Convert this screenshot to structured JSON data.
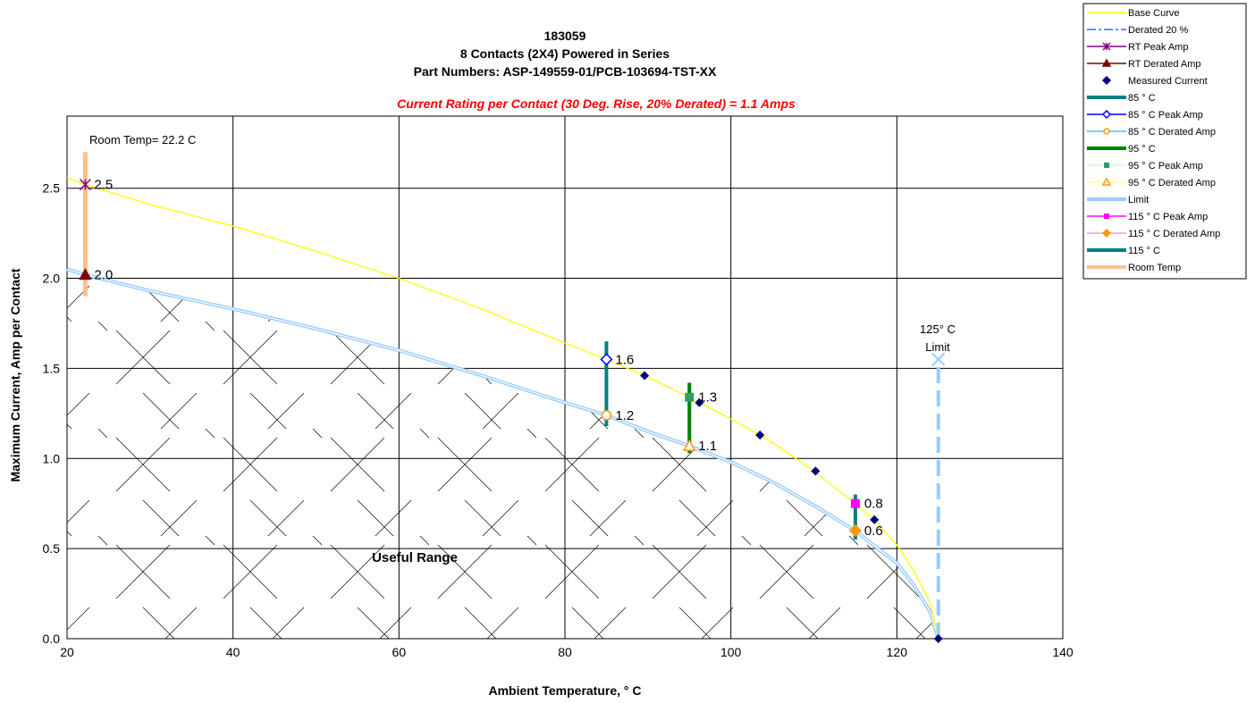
{
  "chart_data": {
    "type": "line",
    "title_lines": [
      "183059",
      "8 Contacts (2X4) Powered in Series",
      "Part Numbers: ASP-149559-01/PCB-103694-TST-XX"
    ],
    "subtitle": "Current Rating per Contact (30 Deg. Rise, 20% Derated)  = 1.1 Amps",
    "xlabel": "Ambient Temperature,  ° C",
    "ylabel": "Maximum Current, Amp per Contact",
    "xlim": [
      20,
      140
    ],
    "ylim": [
      0,
      2.9
    ],
    "x_ticks": [
      "20",
      "40",
      "60",
      "80",
      "100",
      "120",
      "140"
    ],
    "y_ticks": [
      "0.0",
      "0.5",
      "1.0",
      "1.5",
      "2.0",
      "2.5"
    ],
    "x_tick_values": [
      20,
      40,
      60,
      80,
      100,
      120,
      140
    ],
    "y_tick_values": [
      0,
      0.5,
      1.0,
      1.5,
      2.0,
      2.5
    ],
    "grid": true,
    "legend_position": "top-right",
    "annotations": {
      "room_temp": "Room Temp= 22.2 C",
      "limit_line1": "125° C",
      "limit_line2": "Limit",
      "useful_range": "Useful Range"
    },
    "base_curve": {
      "name": "Base Curve",
      "color": "#ffff00",
      "x": [
        20,
        22.2,
        30,
        40,
        50,
        60,
        70,
        80,
        85,
        89.6,
        95,
        96.2,
        100,
        103.5,
        105,
        110,
        115,
        117.3,
        120,
        122,
        124,
        125
      ],
      "y": [
        2.56,
        2.52,
        2.41,
        2.29,
        2.15,
        2.0,
        1.83,
        1.64,
        1.55,
        1.46,
        1.34,
        1.31,
        1.22,
        1.13,
        1.09,
        0.93,
        0.75,
        0.66,
        0.52,
        0.38,
        0.2,
        0.0
      ]
    },
    "derated_curve": {
      "name": "Derated 20 %",
      "color": "#99ccff",
      "x": [
        20,
        22.2,
        30,
        40,
        50,
        60,
        70,
        80,
        85,
        90,
        95,
        100,
        105,
        110,
        115,
        118,
        120,
        122,
        124,
        125
      ],
      "y": [
        2.05,
        2.02,
        1.93,
        1.83,
        1.72,
        1.6,
        1.46,
        1.31,
        1.24,
        1.15,
        1.07,
        0.98,
        0.87,
        0.74,
        0.6,
        0.49,
        0.42,
        0.3,
        0.15,
        0.0
      ]
    },
    "measured_current": {
      "name": "Measured Current",
      "color": "#000080",
      "x": [
        89.6,
        96.2,
        103.5,
        110.2,
        117.3,
        125
      ],
      "y": [
        1.46,
        1.31,
        1.13,
        0.93,
        0.66,
        0.0
      ]
    },
    "vertical_bars": [
      {
        "name": "Room Temp",
        "x": 22.2,
        "y0": 1.9,
        "y1": 2.7,
        "color": "#fac090"
      },
      {
        "name": "85 ° C",
        "x": 85,
        "y0": 1.18,
        "y1": 1.65,
        "color": "#008080"
      },
      {
        "name": "95 ° C",
        "x": 95,
        "y0": 1.03,
        "y1": 1.42,
        "color": "#008000"
      },
      {
        "name": "115 ° C",
        "x": 115,
        "y0": 0.55,
        "y1": 0.8,
        "color": "#008080"
      }
    ],
    "limit_line": {
      "name": "Limit",
      "x": 125,
      "y0": 0.0,
      "y1": 1.55,
      "color": "#99ccff"
    },
    "marked_points": [
      {
        "name": "RT Peak Amp",
        "x": 22.2,
        "y": 2.52,
        "label": "2.5",
        "marker": "star",
        "color": "#800080"
      },
      {
        "name": "RT Derated Amp",
        "x": 22.2,
        "y": 2.02,
        "label": "2.0",
        "marker": "triangle",
        "color": "#800000"
      },
      {
        "name": "85 ° C Peak Amp",
        "x": 85,
        "y": 1.55,
        "label": "1.6",
        "marker": "diamond-open",
        "color": "#0000ff"
      },
      {
        "name": "85 ° C Derated Amp",
        "x": 85,
        "y": 1.24,
        "label": "1.2",
        "marker": "circle-open",
        "color": "#ff9900"
      },
      {
        "name": "95 ° C Peak Amp",
        "x": 95,
        "y": 1.34,
        "label": "1.3",
        "marker": "square",
        "color": "#339966"
      },
      {
        "name": "95 ° C Derated Amp",
        "x": 95,
        "y": 1.07,
        "label": "1.1",
        "marker": "triangle-open",
        "color": "#ff9900"
      },
      {
        "name": "115 ° C Peak Amp",
        "x": 115,
        "y": 0.75,
        "label": "0.8",
        "marker": "square",
        "color": "#ff00ff"
      },
      {
        "name": "115 ° C Derated Amp",
        "x": 115,
        "y": 0.6,
        "label": "0.6",
        "marker": "diamond",
        "color": "#ff9900"
      }
    ],
    "legend": [
      {
        "label": "Base Curve",
        "line": "#ffff00",
        "marker": ""
      },
      {
        "label": "Derated 20 %",
        "line": "#3366ff",
        "marker": "",
        "dash": true
      },
      {
        "label": "RT Peak Amp",
        "line": "#800080",
        "marker": "star"
      },
      {
        "label": "RT Derated Amp",
        "line": "#800000",
        "marker": "triangle"
      },
      {
        "label": "Measured Current",
        "line": "",
        "marker": "diamond",
        "mcolor": "#000080"
      },
      {
        "label": "85 ° C",
        "line": "#008080",
        "marker": "",
        "thick": true
      },
      {
        "label": "85  ° C Peak Amp",
        "line": "#0000ff",
        "marker": "diamond-open"
      },
      {
        "label": "85  ° C Derated Amp",
        "line": "#33ccff",
        "marker": "circle-open",
        "mcolor": "#ff9900"
      },
      {
        "label": "95  ° C",
        "line": "#008000",
        "marker": "",
        "thick": true
      },
      {
        "label": "95  ° C Peak Amp",
        "line": "#ccffcc",
        "marker": "square",
        "mcolor": "#339966"
      },
      {
        "label": "95  ° C Derated Amp",
        "line": "#ffff99",
        "marker": "triangle-open",
        "mcolor": "#ff9900"
      },
      {
        "label": "Limit",
        "line": "#99ccff",
        "marker": "",
        "thick": true
      },
      {
        "label": "115  ° C Peak Amp",
        "line": "#ff00ff",
        "marker": "square"
      },
      {
        "label": "115  ° C Derated Amp",
        "line": "#ff99cc",
        "marker": "diamond",
        "mcolor": "#ff9900"
      },
      {
        "label": "115  ° C",
        "line": "#008080",
        "marker": "",
        "thick": true
      },
      {
        "label": "Room Temp",
        "line": "#fac090",
        "marker": "",
        "thick": true
      }
    ]
  }
}
